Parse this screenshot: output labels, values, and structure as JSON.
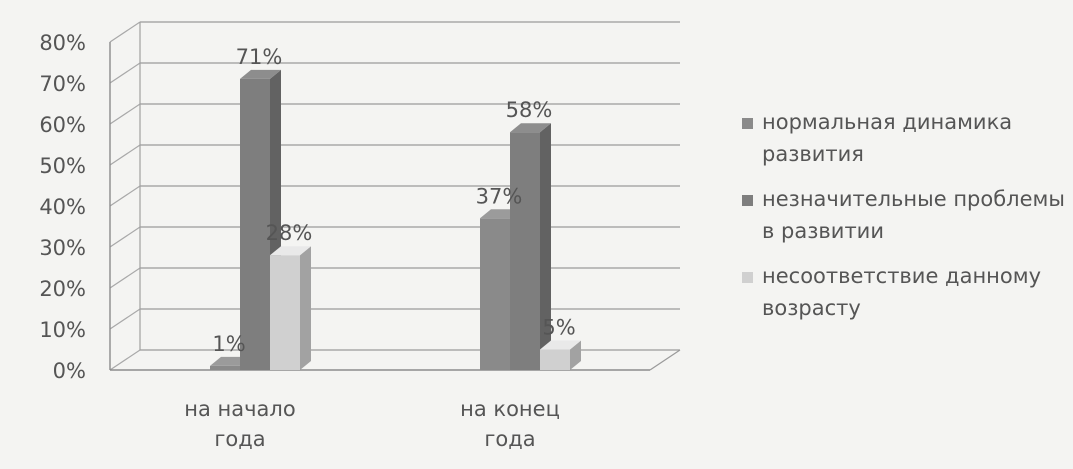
{
  "chart_data": {
    "type": "bar",
    "title": "",
    "xlabel": "",
    "ylabel": "",
    "categories": [
      [
        "на начало",
        "года"
      ],
      [
        "на конец",
        "года"
      ]
    ],
    "series": [
      {
        "name": [
          "нормальная динамика",
          "развития"
        ],
        "values": [
          1,
          37
        ],
        "labels": [
          "1%",
          "37%"
        ],
        "color": "#8a8a8a"
      },
      {
        "name": [
          "незначительные проблемы",
          "в развитии"
        ],
        "values": [
          71,
          58
        ],
        "labels": [
          "71%",
          "58%"
        ],
        "color": "#7e7e7e"
      },
      {
        "name": [
          "несоответствие данному",
          "возрасту"
        ],
        "values": [
          28,
          5
        ],
        "labels": [
          "28%",
          "5%"
        ],
        "color": "#d0d0d0"
      }
    ],
    "y_ticks": [
      "0%",
      "10%",
      "20%",
      "30%",
      "40%",
      "50%",
      "60%",
      "70%",
      "80%"
    ],
    "ylim": [
      0,
      80
    ],
    "grid": true,
    "legend_position": "right",
    "three_d": true
  }
}
